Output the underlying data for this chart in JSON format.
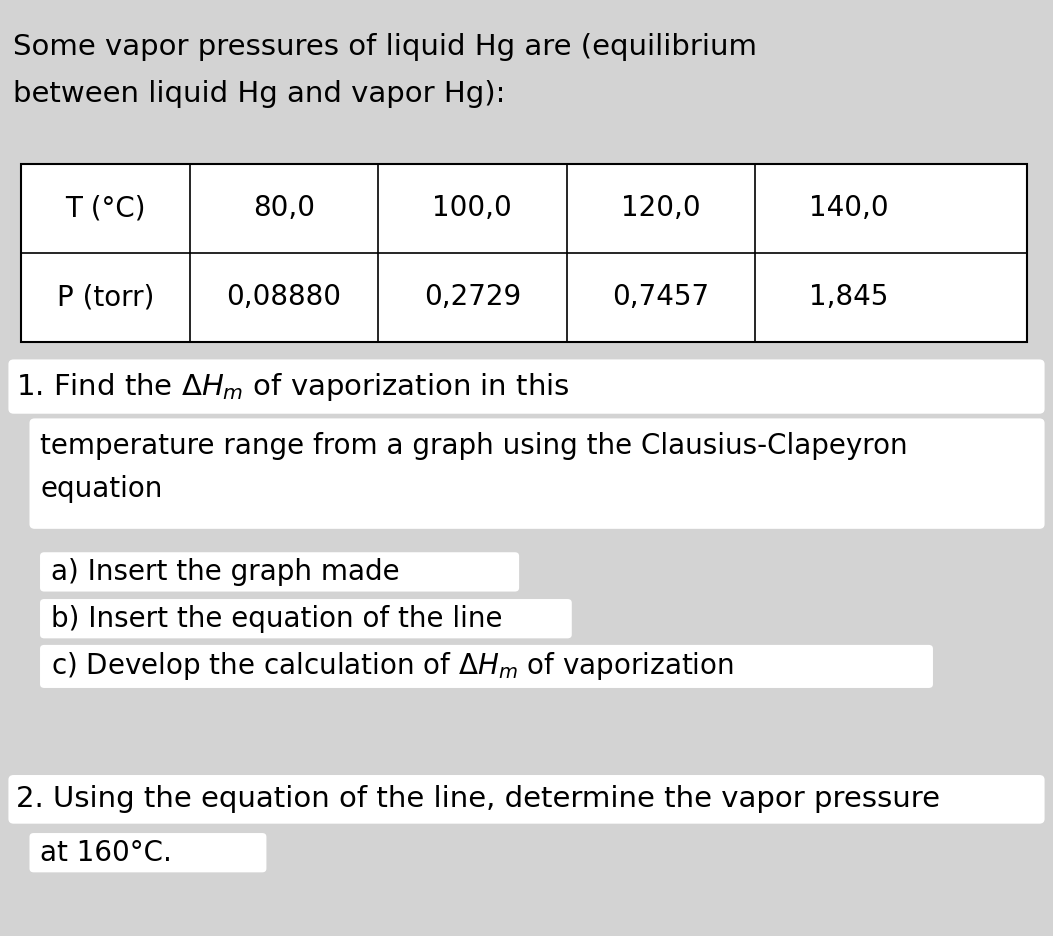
{
  "bg_color": "#d3d3d3",
  "white_color": "#ffffff",
  "text_color": "#000000",
  "header_line1": "Some vapor pressures of liquid Hg are (equilibrium",
  "header_line2": "between liquid Hg and vapor Hg):",
  "table_headers": [
    "T (°C)",
    "80,0",
    "100,0",
    "120,0",
    "140,0"
  ],
  "table_row2": [
    "P (torr)",
    "0,08880",
    "0,2729",
    "0,7457",
    "1,845"
  ],
  "q1_line1": "1. Find the $\\Delta H_m$ of vaporization in this",
  "q1_line2": "temperature range from a graph using the Clausius-Clapeyron",
  "q1_line3": "equation",
  "q1a": "a) Insert the graph made",
  "q1b": "b) Insert the equation of the line",
  "q1c": "c) Develop the calculation of $\\Delta H_m$ of vaporization",
  "q2_line1": "2. Using the equation of the line, determine the vapor pressure",
  "q2_line2": "at 160°C.",
  "font_size_header": 21,
  "font_size_table": 20,
  "font_size_q": 21,
  "font_size_small": 20
}
